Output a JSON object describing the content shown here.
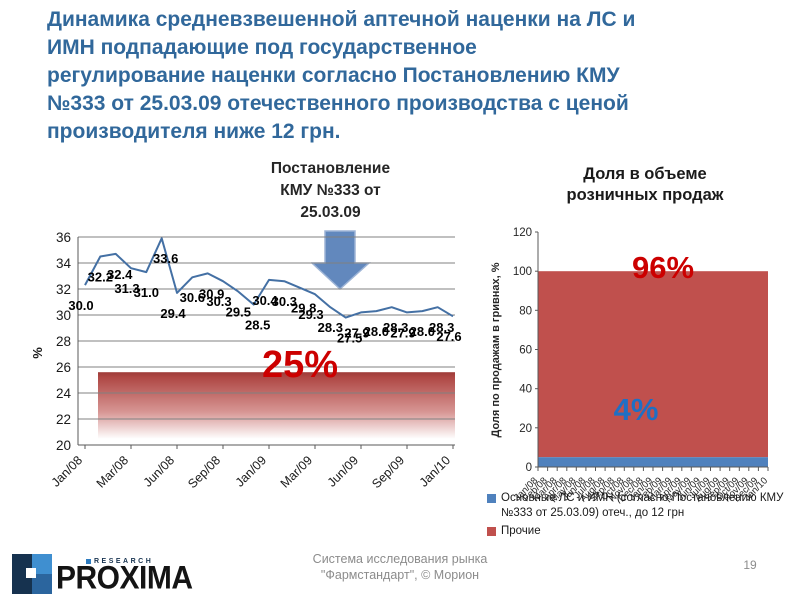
{
  "slide": {
    "title_lines": [
      "Динамика средневзвешенной аптечной наценки на ЛС и",
      "ИМН подпадающие под государственное",
      "регулирование наценки согласно Постановлению КМУ",
      "№333 от 25.03.09 отечественного производства с ценой",
      "производителя ниже 12 грн."
    ],
    "footer_lines": [
      "Система исследования рынка",
      "\"Фармстандарт\", © Морион"
    ],
    "page_number": "19",
    "logo": {
      "brand": "PROXIMA",
      "subbrand": "RESEARCH"
    }
  },
  "annotations": {
    "decree_lines": [
      "Постановление",
      "КМУ №333 от",
      "25.03.09"
    ],
    "regulated_level_label": "25%",
    "others_share_label": "96%",
    "main_share_label": "4%"
  },
  "chart_data": [
    {
      "type": "line",
      "title": "",
      "ylabel": "%",
      "ylim": [
        20,
        36
      ],
      "ytick_step": 2,
      "grid": true,
      "categories": [
        "Jan/08",
        "Feb/08",
        "Mar/08",
        "Apr/08",
        "May/08",
        "Jun/08",
        "Jul/08",
        "Aug/08",
        "Sep/08",
        "Oct/08",
        "Nov/08",
        "Dec/08",
        "Jan/09",
        "Feb/09",
        "Mar/09",
        "Apr/09",
        "May/09",
        "Jun/09",
        "Jul/09",
        "Aug/09",
        "Sep/09",
        "Oct/09",
        "Nov/09",
        "Dec/09",
        "Jan/10"
      ],
      "xtick_labels": [
        "Jan/08",
        "Mar/08",
        "Jun/08",
        "Sep/08",
        "Jan/09",
        "Mar/09",
        "Jun/09",
        "Sep/09",
        "Jan/10"
      ],
      "series": [
        {
          "name": "",
          "values": [
            30.0,
            32.2,
            32.4,
            31.3,
            31.0,
            33.6,
            29.4,
            30.6,
            30.9,
            30.3,
            29.5,
            28.5,
            30.4,
            30.3,
            29.8,
            29.3,
            28.3,
            27.5,
            27.9,
            28.0,
            28.3,
            27.9,
            28.0,
            28.3,
            27.6
          ]
        }
      ],
      "band": {
        "from": 20.5,
        "to": 25.6,
        "label": "25%"
      },
      "line_visual_offset": 2.3
    },
    {
      "type": "area",
      "stacked": true,
      "title_lines": [
        "Доля в объеме",
        "розничных продаж"
      ],
      "ylabel": "Доля по продажам в гривнах, %",
      "ylim": [
        0,
        120
      ],
      "ytick_step": 20,
      "grid": false,
      "legend_position": "bottom",
      "categories": [
        "Jan/08",
        "Feb/08",
        "Mar/08",
        "Apr/08",
        "May/08",
        "Jun/08",
        "Jul/08",
        "Aug/08",
        "Sep/08",
        "Oct/08",
        "Nov/08",
        "Dec/08",
        "Jan/09",
        "Feb/09",
        "Mar/09",
        "Apr/09",
        "May/09",
        "Jun/09",
        "Jul/09",
        "Aug/09",
        "Sep/09",
        "Oct/09",
        "Nov/09",
        "Dec/09",
        "Jan/10"
      ],
      "series": [
        {
          "name": "Основные ЛС и ИМН (согласно Постановлению КМУ №333 от 25.03.09) отеч., до 12 грн",
          "approx_percent": 4,
          "color": "#4F81BD"
        },
        {
          "name": "Прочие",
          "approx_percent": 96,
          "color": "#C0504D"
        }
      ]
    }
  ],
  "colors": {
    "title_text": "#31689B",
    "line": "#4470A4",
    "area_red": "#C0504D",
    "area_blue": "#4F81BD",
    "percent_red": "#CC0000",
    "percent_blue": "#1F6FC4",
    "arrow_fill": "#6288BD",
    "footer_text": "#8C8C8C"
  }
}
